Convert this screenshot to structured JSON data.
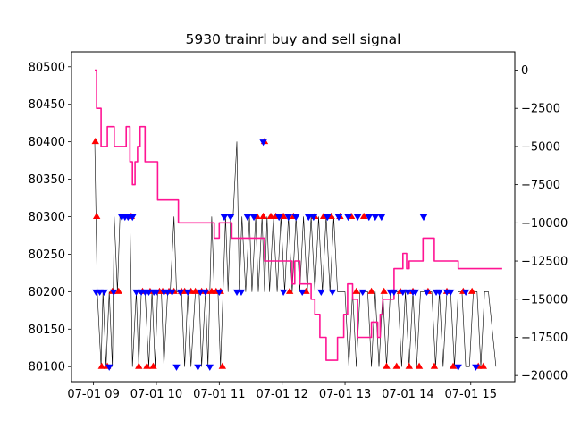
{
  "chart_data": {
    "type": "line",
    "title": "5930 trainrl buy and sell signal",
    "xlabel": "",
    "ylabel": "",
    "grid": false,
    "legend": "none",
    "x_ticks": [
      "07-01 09",
      "07-01 10",
      "07-01 11",
      "07-01 12",
      "07-01 13",
      "07-01 14",
      "07-01 15"
    ],
    "y_left_ticks": [
      "80100",
      "80150",
      "80200",
      "80250",
      "80300",
      "80350",
      "80400",
      "80450",
      "80500"
    ],
    "y_right_ticks": [
      "0",
      "−2500",
      "−5000",
      "−7500",
      "−10000",
      "−12500",
      "−15000",
      "−17500",
      "−20000"
    ],
    "xlim_hours": [
      8.65,
      15.7
    ],
    "ylim_left": [
      80080,
      80520
    ],
    "ylim_right": [
      -20400,
      1200
    ],
    "colors": {
      "price": "#000000",
      "profit": "#ff1493",
      "buy": "#ff0000",
      "sell": "#0000ff"
    },
    "series": [
      {
        "axis": "left",
        "color": "#000000",
        "x": [
          9.02,
          9.04,
          9.06,
          9.12,
          9.15,
          9.2,
          9.25,
          9.3,
          9.33,
          9.38,
          9.42,
          9.46,
          9.52,
          9.58,
          9.62,
          9.68,
          9.72,
          9.76,
          9.82,
          9.88,
          9.93,
          9.98,
          10.02,
          10.08,
          10.12,
          10.18,
          10.22,
          10.28,
          10.32,
          10.4,
          10.45,
          10.5,
          10.55,
          10.62,
          10.68,
          10.72,
          10.78,
          10.82,
          10.88,
          10.92,
          10.98,
          11.02,
          11.06,
          11.1,
          11.14,
          11.18,
          11.22,
          11.28,
          11.32,
          11.36,
          11.42,
          11.48,
          11.52,
          11.58,
          11.62,
          11.68,
          11.72,
          11.76,
          11.8,
          11.86,
          11.92,
          11.98,
          12.04,
          12.1,
          12.16,
          12.22,
          12.28,
          12.34,
          12.4,
          12.46,
          12.52,
          12.58,
          12.64,
          12.7,
          12.76,
          12.82,
          12.88,
          12.94,
          13.0,
          13.06,
          13.12,
          13.18,
          13.24,
          13.3,
          13.36,
          13.42,
          13.48,
          13.54,
          13.6,
          13.66,
          13.72,
          13.78,
          13.84,
          13.9,
          13.96,
          14.02,
          14.08,
          14.14,
          14.2,
          14.26,
          14.32,
          14.38,
          14.44,
          14.5,
          14.56,
          14.62,
          14.68,
          14.74,
          14.8,
          14.86,
          14.92,
          14.98,
          15.04,
          15.1,
          15.16,
          15.22,
          15.28,
          15.4
        ],
        "values": [
          80400,
          80300,
          80200,
          80100,
          80200,
          80100,
          80200,
          80100,
          80300,
          80200,
          80300,
          80300,
          80300,
          80300,
          80100,
          80200,
          80100,
          80200,
          80200,
          80100,
          80200,
          80100,
          80200,
          80200,
          80100,
          80200,
          80200,
          80300,
          80200,
          80200,
          80100,
          80200,
          80100,
          80200,
          80200,
          80100,
          80200,
          80100,
          80300,
          80200,
          80200,
          80100,
          80200,
          80300,
          80200,
          80300,
          80300,
          80400,
          80200,
          80300,
          80200,
          80300,
          80200,
          80300,
          80200,
          80300,
          80200,
          80300,
          80200,
          80300,
          80200,
          80300,
          80200,
          80300,
          80200,
          80300,
          80200,
          80300,
          80200,
          80300,
          80200,
          80300,
          80200,
          80300,
          80200,
          80300,
          80200,
          80200,
          80200,
          80100,
          80200,
          80100,
          80200,
          80200,
          80200,
          80100,
          80200,
          80100,
          80200,
          80100,
          80200,
          80200,
          80200,
          80100,
          80200,
          80100,
          80200,
          80100,
          80200,
          80200,
          80200,
          80200,
          80100,
          80200,
          80100,
          80200,
          80200,
          80100,
          80200,
          80200,
          80100,
          80100,
          80200,
          80200,
          80100,
          80200,
          80200,
          80100
        ]
      },
      {
        "axis": "right",
        "color": "#ff1493",
        "x": [
          9.02,
          9.05,
          9.05,
          9.12,
          9.12,
          9.22,
          9.22,
          9.33,
          9.33,
          9.52,
          9.52,
          9.58,
          9.58,
          9.62,
          9.62,
          9.66,
          9.66,
          9.7,
          9.7,
          9.74,
          9.74,
          9.82,
          9.82,
          9.93,
          9.93,
          10.02,
          10.02,
          10.14,
          10.14,
          10.35,
          10.35,
          10.6,
          10.6,
          10.92,
          10.92,
          11.0,
          11.0,
          11.06,
          11.06,
          11.14,
          11.14,
          11.2,
          11.2,
          11.72,
          11.72,
          12.1,
          12.1,
          12.16,
          12.16,
          12.2,
          12.2,
          12.28,
          12.28,
          12.46,
          12.46,
          12.52,
          12.52,
          12.6,
          12.6,
          12.7,
          12.7,
          12.88,
          12.88,
          12.98,
          12.98,
          13.04,
          13.04,
          13.12,
          13.12,
          13.2,
          13.2,
          13.42,
          13.42,
          13.52,
          13.52,
          13.56,
          13.56,
          13.6,
          13.6,
          13.78,
          13.78,
          13.92,
          13.92,
          13.98,
          13.98,
          14.02,
          14.02,
          14.16,
          14.16,
          14.24,
          14.24,
          14.42,
          14.42,
          14.52,
          14.52,
          14.8,
          14.8,
          15.0,
          15.0,
          15.26,
          15.26,
          15.5
        ],
        "values": [
          0,
          0,
          -2500,
          -2500,
          -5000,
          -5000,
          -3700,
          -3700,
          -5000,
          -5000,
          -3700,
          -3700,
          -6000,
          -6000,
          -7500,
          -7500,
          -6000,
          -6000,
          -5000,
          -5000,
          -3700,
          -3700,
          -6000,
          -6000,
          -6000,
          -6000,
          -8500,
          -8500,
          -8500,
          -8500,
          -10000,
          -10000,
          -10000,
          -10000,
          -11000,
          -11000,
          -10000,
          -10000,
          -10000,
          -10000,
          -10000,
          -10000,
          -11000,
          -11000,
          -12500,
          -12500,
          -12500,
          -12500,
          -14000,
          -14000,
          -12500,
          -12500,
          -14000,
          -14000,
          -15000,
          -15000,
          -16000,
          -16000,
          -17500,
          -17500,
          -19000,
          -19000,
          -17500,
          -17500,
          -16000,
          -16000,
          -14000,
          -14000,
          -15000,
          -15000,
          -17500,
          -17500,
          -16500,
          -16500,
          -17500,
          -17500,
          -16000,
          -16000,
          -15000,
          -15000,
          -13000,
          -13000,
          -12000,
          -12000,
          -13000,
          -13000,
          -12500,
          -12500,
          -12500,
          -12500,
          -11000,
          -11000,
          -12500,
          -12500,
          -12500,
          -12500,
          -13000,
          -13000,
          -13000,
          -13000,
          -13000,
          -13000
        ]
      }
    ],
    "buy_signals": {
      "marker": "triangle-up",
      "color": "#ff0000",
      "x": [
        9.03,
        9.05,
        9.13,
        9.22,
        9.3,
        9.4,
        9.6,
        9.72,
        9.78,
        9.85,
        9.9,
        9.95,
        10.05,
        10.1,
        10.2,
        10.28,
        10.4,
        10.45,
        10.55,
        10.62,
        10.72,
        10.8,
        10.88,
        10.95,
        11.02,
        11.05,
        11.6,
        11.7,
        11.72,
        11.82,
        11.9,
        12.02,
        12.12,
        12.18,
        12.38,
        12.52,
        12.66,
        12.78,
        12.92,
        13.1,
        13.18,
        13.3,
        13.42,
        13.62,
        13.66,
        13.82,
        13.88,
        14.02,
        14.08,
        14.18,
        14.32,
        14.42,
        14.62,
        14.72,
        14.88,
        15.02,
        15.12,
        15.2
      ],
      "values": [
        80400,
        80300,
        80100,
        80100,
        80200,
        80200,
        80300,
        80100,
        80200,
        80100,
        80200,
        80100,
        80200,
        80200,
        80200,
        80200,
        80200,
        80200,
        80200,
        80200,
        80200,
        80200,
        80200,
        80200,
        80200,
        80100,
        80300,
        80300,
        80400,
        80300,
        80300,
        80300,
        80200,
        80300,
        80200,
        80300,
        80300,
        80300,
        80300,
        80300,
        80200,
        80300,
        80200,
        80200,
        80100,
        80100,
        80200,
        80100,
        80200,
        80100,
        80200,
        80100,
        80200,
        80100,
        80200,
        80200,
        80100,
        80100
      ]
    },
    "sell_signals": {
      "marker": "triangle-down",
      "color": "#0000ff",
      "x": [
        9.04,
        9.1,
        9.17,
        9.25,
        9.32,
        9.45,
        9.5,
        9.55,
        9.62,
        9.68,
        9.76,
        9.82,
        9.88,
        9.96,
        10.0,
        10.12,
        10.18,
        10.25,
        10.32,
        10.38,
        10.5,
        10.66,
        10.7,
        10.78,
        10.85,
        11.0,
        11.08,
        11.18,
        11.28,
        11.35,
        11.45,
        11.55,
        11.7,
        11.95,
        12.02,
        12.1,
        12.22,
        12.32,
        12.42,
        12.5,
        12.62,
        12.72,
        12.8,
        12.9,
        13.05,
        13.2,
        13.28,
        13.38,
        13.48,
        13.58,
        13.72,
        13.78,
        13.92,
        14.0,
        14.08,
        14.12,
        14.25,
        14.3,
        14.45,
        14.5,
        14.62,
        14.68,
        14.8,
        14.92,
        15.08
      ],
      "values": [
        80200,
        80200,
        80200,
        80100,
        80200,
        80300,
        80300,
        80300,
        80300,
        80200,
        80200,
        80200,
        80200,
        80200,
        80200,
        80200,
        80200,
        80200,
        80100,
        80200,
        80200,
        80100,
        80200,
        80200,
        80100,
        80200,
        80300,
        80300,
        80200,
        80200,
        80300,
        80300,
        80400,
        80300,
        80200,
        80300,
        80300,
        80200,
        80300,
        80300,
        80200,
        80300,
        80200,
        80300,
        80300,
        80300,
        80200,
        80300,
        80300,
        80300,
        80200,
        80200,
        80200,
        80200,
        80200,
        80200,
        80300,
        80200,
        80200,
        80200,
        80200,
        80200,
        80100,
        80200,
        80100
      ]
    }
  }
}
